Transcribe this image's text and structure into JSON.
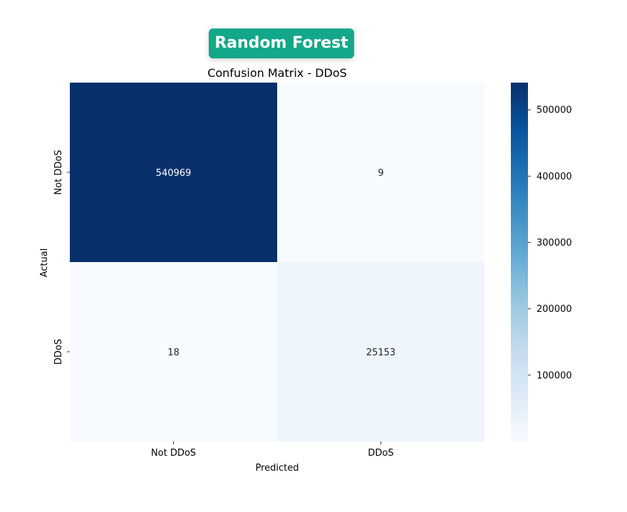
{
  "badge": {
    "label": "Random Forest",
    "color": "#13a88a"
  },
  "chart_data": {
    "type": "heatmap",
    "title": "Confusion Matrix - DDoS",
    "xlabel": "Predicted",
    "ylabel": "Actual",
    "x_categories": [
      "Not DDoS",
      "DDoS"
    ],
    "y_categories": [
      "Not DDoS",
      "DDoS"
    ],
    "values": [
      [
        540969,
        9
      ],
      [
        18,
        25153
      ]
    ],
    "colormap": "Blues",
    "colorbar": {
      "vmin": 9,
      "vmax": 540969,
      "ticks": [
        100000,
        200000,
        300000,
        400000,
        500000
      ],
      "tick_labels": [
        "100000",
        "200000",
        "300000",
        "400000",
        "500000"
      ]
    }
  }
}
